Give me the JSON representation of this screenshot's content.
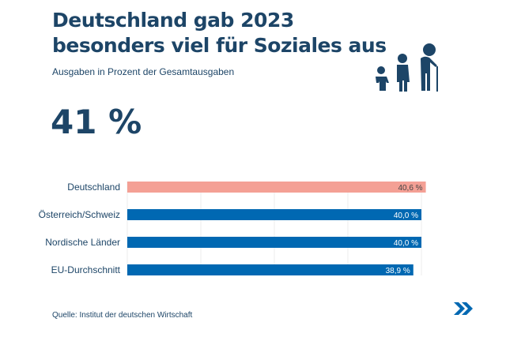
{
  "title": "Deutschland gab 2023 besonders viel für Soziales aus",
  "subtitle": "Ausgaben in Prozent der Gesamtausgaben",
  "headline_value": "41 %",
  "source": "Quelle: Institut der deutschen Wirtschaft",
  "icons": [
    "family-generations-icon",
    "double-chevron-right-icon"
  ],
  "colors": {
    "highlight": "#f4a095",
    "bar": "#0068b2",
    "text": "#1d4567"
  },
  "chart_data": {
    "type": "bar",
    "orientation": "horizontal",
    "categories": [
      "Deutschland",
      "Österreich/Schweiz",
      "Nordische Länder",
      "EU-Durchschnitt"
    ],
    "values": [
      40.6,
      40.0,
      40.0,
      38.9
    ],
    "labels": [
      "40,6 %",
      "40,0 %",
      "40,0 %",
      "38,9 %"
    ],
    "xlim": [
      0,
      40
    ],
    "grid_x": [
      0,
      10,
      20,
      30,
      40
    ],
    "highlight_index": 0,
    "title": "Deutschland gab 2023 besonders viel für Soziales aus",
    "xlabel": "",
    "ylabel": ""
  }
}
